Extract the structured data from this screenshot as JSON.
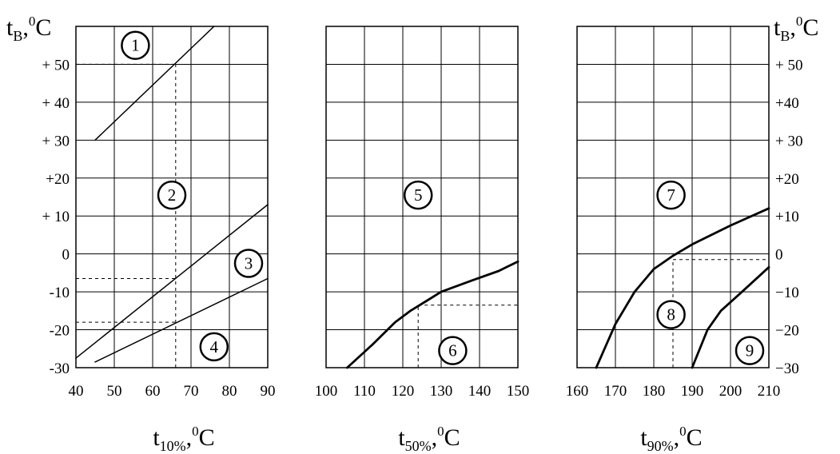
{
  "chart_data": [
    {
      "type": "line",
      "panel": "left",
      "xlabel": {
        "main": "t",
        "sub": "10%",
        "sep": ",",
        "sup": "0",
        "unit": "C"
      },
      "ylabel": {
        "main": "t",
        "sub": "B",
        "sep": ",",
        "sup": "0",
        "unit": "C"
      },
      "xlim": [
        40,
        90
      ],
      "ylim": [
        -30,
        60
      ],
      "x_ticks": [
        40,
        50,
        60,
        70,
        80,
        90
      ],
      "x_tick_labels": [
        "40",
        "50",
        "60",
        "70",
        "80",
        "90"
      ],
      "y_ticks": [
        50,
        40,
        30,
        20,
        10,
        0,
        -10,
        -20,
        -30
      ],
      "y_tick_labels": [
        "+ 50",
        "+ 40",
        "+ 30",
        "+20",
        "+ 10",
        "0",
        "-10",
        "-20",
        "-30"
      ],
      "grid": true,
      "series": [
        {
          "x": [
            45,
            76
          ],
          "y": [
            30,
            60
          ]
        },
        {
          "x": [
            40,
            90
          ],
          "y": [
            -27.5,
            13
          ]
        },
        {
          "x": [
            45,
            90
          ],
          "y": [
            -28.5,
            -6.5
          ]
        }
      ],
      "guides": [
        {
          "x": [
            40,
            66
          ],
          "y": [
            50,
            50
          ]
        },
        {
          "x": [
            40,
            66
          ],
          "y": [
            -6.5,
            -6.5
          ]
        },
        {
          "x": [
            40,
            66
          ],
          "y": [
            -18,
            -18
          ]
        },
        {
          "x": [
            66,
            66
          ],
          "y": [
            -30,
            50
          ]
        }
      ],
      "markers": [
        {
          "label": "1",
          "x": 55.5,
          "y": 55
        },
        {
          "label": "2",
          "x": 65,
          "y": 15.5
        },
        {
          "label": "3",
          "x": 85,
          "y": -2.5
        },
        {
          "label": "4",
          "x": 76,
          "y": -24.5
        }
      ]
    },
    {
      "type": "line",
      "panel": "middle",
      "xlabel": {
        "main": "t",
        "sub": "50%",
        "sep": ",",
        "sup": "0",
        "unit": "C"
      },
      "xlim": [
        100,
        150
      ],
      "ylim": [
        -30,
        60
      ],
      "x_ticks": [
        100,
        110,
        120,
        130,
        140,
        150
      ],
      "x_tick_labels": [
        "100",
        "110",
        "120",
        "130",
        "140",
        "150"
      ],
      "grid": true,
      "series": [
        {
          "x": [
            105.5,
            112,
            118,
            122,
            126,
            130,
            138,
            145,
            150
          ],
          "y": [
            -30,
            -24,
            -18,
            -15,
            -12.5,
            -10,
            -7,
            -4.5,
            -2
          ]
        }
      ],
      "guides": [
        {
          "x": [
            124,
            150
          ],
          "y": [
            -13.5,
            -13.5
          ]
        },
        {
          "x": [
            124,
            124
          ],
          "y": [
            -30,
            -13.5
          ]
        }
      ],
      "markers": [
        {
          "label": "5",
          "x": 124,
          "y": 15.5
        },
        {
          "label": "6",
          "x": 133,
          "y": -25.5
        }
      ]
    },
    {
      "type": "line",
      "panel": "right",
      "xlabel": {
        "main": "t",
        "sub": "90%",
        "sep": ",",
        "sup": "0",
        "unit": "C"
      },
      "ylabel": {
        "main": "t",
        "sub": "B",
        "sep": ",",
        "sup": "0",
        "unit": "C"
      },
      "xlim": [
        160,
        210
      ],
      "ylim": [
        -30,
        60
      ],
      "x_ticks": [
        160,
        170,
        180,
        190,
        200,
        210
      ],
      "x_tick_labels": [
        "160",
        "170",
        "180",
        "190",
        "200",
        "210"
      ],
      "y_ticks": [
        50,
        40,
        30,
        20,
        10,
        0,
        -10,
        -20,
        -30
      ],
      "y_tick_labels": [
        "+ 50",
        "+40",
        "+ 30",
        "+20",
        "+10",
        "0",
        "−10",
        "−20",
        "−30"
      ],
      "grid": true,
      "series": [
        {
          "x": [
            165,
            170,
            175,
            180,
            185,
            190,
            200,
            210
          ],
          "y": [
            -30,
            -18.5,
            -10,
            -4,
            -0.5,
            2.5,
            7.5,
            12
          ]
        },
        {
          "x": [
            190,
            194,
            197.5,
            203,
            210
          ],
          "y": [
            -30,
            -20,
            -15,
            -10,
            -3.5
          ]
        }
      ],
      "guides": [
        {
          "x": [
            185,
            210
          ],
          "y": [
            -1.5,
            -1.5
          ]
        },
        {
          "x": [
            185,
            185
          ],
          "y": [
            -30,
            -1.5
          ]
        }
      ],
      "markers": [
        {
          "label": "7",
          "x": 184.5,
          "y": 15.5
        },
        {
          "label": "8",
          "x": 184.5,
          "y": -16
        },
        {
          "label": "9",
          "x": 205,
          "y": -25.5
        }
      ]
    }
  ]
}
